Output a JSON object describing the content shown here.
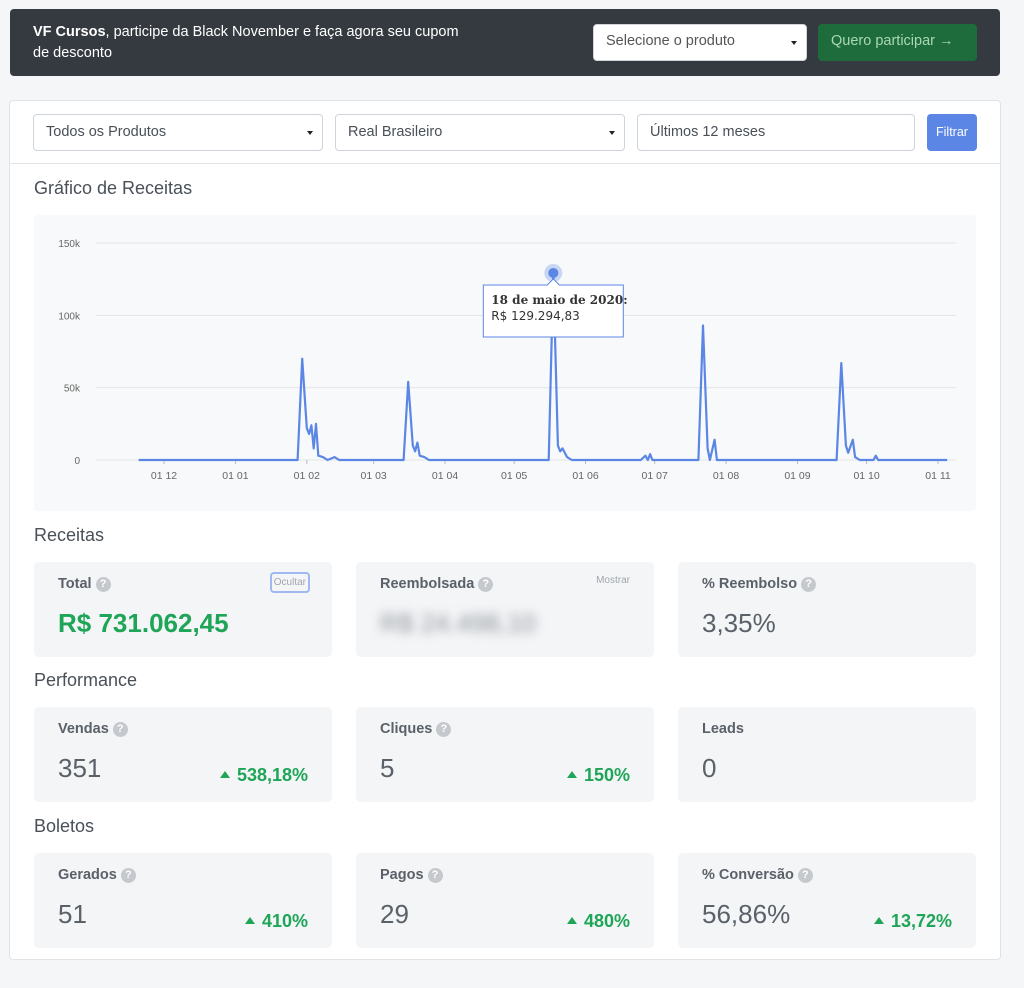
{
  "banner": {
    "brand": "VF Cursos",
    "message": ", participe da Black November e faça agora seu cupom de desconto",
    "select_placeholder": "Selecione o produto",
    "button_label": "Quero participar →"
  },
  "filters": {
    "product": "Todos os Produtos",
    "currency": "Real Brasileiro",
    "period": "Últimos 12 meses",
    "button_label": "Filtrar"
  },
  "chart": {
    "title": "Gráfico de Receitas",
    "tooltip_date": "18 de maio de 2020:",
    "tooltip_value": "R$ 129.294,83"
  },
  "chart_data": {
    "type": "line",
    "x_ticks": [
      "01 12",
      "01 01",
      "01 02",
      "01 03",
      "01 04",
      "01 05",
      "01 06",
      "01 07",
      "01 08",
      "01 09",
      "01 10",
      "01 11"
    ],
    "y_ticks": [
      "0",
      "50k",
      "100k",
      "150k"
    ],
    "ylim": [
      0,
      150000
    ],
    "color": "#5b86e5",
    "series": [
      {
        "points": [
          [
            "2019-11-20",
            0
          ],
          [
            "2020-01-28",
            0
          ],
          [
            "2020-01-30",
            70000
          ],
          [
            "2020-02-01",
            22000
          ],
          [
            "2020-02-02",
            18000
          ],
          [
            "2020-02-03",
            24000
          ],
          [
            "2020-02-04",
            8000
          ],
          [
            "2020-02-05",
            25000
          ],
          [
            "2020-02-06",
            3000
          ],
          [
            "2020-02-08",
            2000
          ],
          [
            "2020-02-10",
            0
          ],
          [
            "2020-02-13",
            2000
          ],
          [
            "2020-02-15",
            0
          ],
          [
            "2020-03-14",
            0
          ],
          [
            "2020-03-16",
            54000
          ],
          [
            "2020-03-18",
            10000
          ],
          [
            "2020-03-19",
            6000
          ],
          [
            "2020-03-20",
            12000
          ],
          [
            "2020-03-21",
            3000
          ],
          [
            "2020-03-23",
            2000
          ],
          [
            "2020-03-25",
            0
          ],
          [
            "2020-05-16",
            0
          ],
          [
            "2020-05-18",
            129294.83
          ],
          [
            "2020-05-20",
            10000
          ],
          [
            "2020-05-21",
            6000
          ],
          [
            "2020-05-22",
            8000
          ],
          [
            "2020-05-24",
            2000
          ],
          [
            "2020-05-26",
            0
          ],
          [
            "2020-06-25",
            0
          ],
          [
            "2020-06-27",
            3000
          ],
          [
            "2020-06-28",
            0
          ],
          [
            "2020-06-29",
            4000
          ],
          [
            "2020-06-30",
            0
          ],
          [
            "2020-07-20",
            0
          ],
          [
            "2020-07-22",
            93000
          ],
          [
            "2020-07-24",
            8000
          ],
          [
            "2020-07-25",
            0
          ],
          [
            "2020-07-27",
            14000
          ],
          [
            "2020-07-28",
            0
          ],
          [
            "2020-09-18",
            0
          ],
          [
            "2020-09-20",
            67000
          ],
          [
            "2020-09-22",
            10000
          ],
          [
            "2020-09-23",
            5000
          ],
          [
            "2020-09-25",
            14000
          ],
          [
            "2020-09-26",
            2000
          ],
          [
            "2020-09-28",
            0
          ],
          [
            "2020-10-04",
            0
          ],
          [
            "2020-10-05",
            3000
          ],
          [
            "2020-10-06",
            0
          ],
          [
            "2020-11-05",
            0
          ]
        ]
      }
    ],
    "highlight": {
      "date": "2020-05-18",
      "value": 129294.83
    }
  },
  "receitas": {
    "title": "Receitas",
    "total": {
      "label": "Total",
      "value": "R$ 731.062,45",
      "toggle": "Ocultar"
    },
    "reembolsada": {
      "label": "Reembolsada",
      "value": "R$ 24.498,10",
      "toggle": "Mostrar"
    },
    "reembolso": {
      "label": "% Reembolso",
      "value": "3,35%"
    }
  },
  "performance": {
    "title": "Performance",
    "vendas": {
      "label": "Vendas",
      "value": "351",
      "change": "538,18%"
    },
    "cliques": {
      "label": "Cliques",
      "value": "5",
      "change": "150%"
    },
    "leads": {
      "label": "Leads",
      "value": "0"
    }
  },
  "boletos": {
    "title": "Boletos",
    "gerados": {
      "label": "Gerados",
      "value": "51",
      "change": "410%"
    },
    "pagos": {
      "label": "Pagos",
      "value": "29",
      "change": "480%"
    },
    "conversao": {
      "label": "% Conversão",
      "value": "56,86%",
      "change": "13,72%"
    }
  }
}
